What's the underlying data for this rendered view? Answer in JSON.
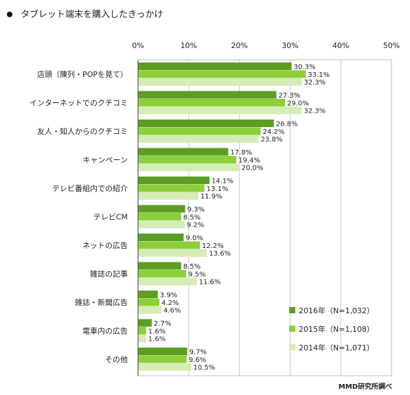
{
  "title": "タブレット端末を購入したきっかけ",
  "credit": "MMD研究所調べ",
  "colors": {
    "s2016": "#5b9e23",
    "s2015": "#8ccf3a",
    "s2014": "#d4ecb5"
  },
  "chart_data": {
    "type": "bar",
    "orientation": "horizontal",
    "title": "タブレット端末を購入したきっかけ",
    "xlim": [
      0,
      50
    ],
    "x_ticks": [
      "0%",
      "10%",
      "20%",
      "30%",
      "40%",
      "50%"
    ],
    "grid": true,
    "legend_position": "bottom-right",
    "categories": [
      "店頭（陳列・POPを見て）",
      "インターネットでのクチコミ",
      "友人・知人からのクチコミ",
      "キャンペーン",
      "テレビ番組内での紹介",
      "テレビCM",
      "ネットの広告",
      "雑誌の記事",
      "雑誌・新聞広告",
      "電車内の広告",
      "その他"
    ],
    "series": [
      {
        "name": "2016年（N=1,032）",
        "values": [
          30.3,
          27.3,
          26.8,
          17.8,
          14.1,
          9.3,
          9.0,
          8.5,
          3.9,
          2.7,
          9.7
        ],
        "labels": [
          "30.3%",
          "27.3%",
          "26.8%",
          "17.8%",
          "14.1%",
          "9.3%",
          "9.0%",
          "8.5%",
          "3.9%",
          "2.7%",
          "9.7%"
        ]
      },
      {
        "name": "2015年（N=1,108）",
        "values": [
          33.1,
          29.0,
          24.2,
          19.4,
          13.1,
          8.5,
          12.2,
          9.5,
          4.2,
          1.6,
          9.6
        ],
        "labels": [
          "33.1%",
          "29.0%",
          "24.2%",
          "19.4%",
          "13.1%",
          "8.5%",
          "12.2%",
          "9.5%",
          "4.2%",
          "1.6%",
          "9.6%"
        ]
      },
      {
        "name": "2014年（N=1,071）",
        "values": [
          32.3,
          32.3,
          23.8,
          20.0,
          11.9,
          9.2,
          13.6,
          11.6,
          4.6,
          1.6,
          10.5
        ],
        "labels": [
          "32.3%",
          "32.3%",
          "23.8%",
          "20.0%",
          "11.9%",
          "9.2%",
          "13.6%",
          "11.6%",
          "4.6%",
          "1.6%",
          "10.5%"
        ]
      }
    ]
  }
}
